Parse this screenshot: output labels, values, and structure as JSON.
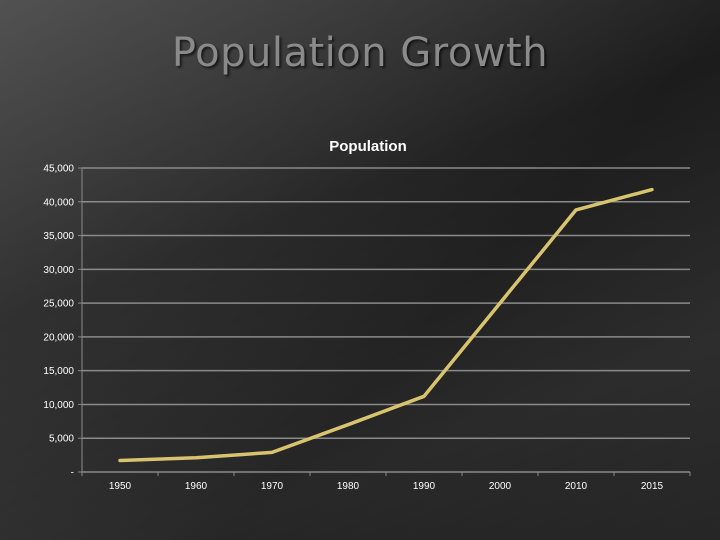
{
  "slide": {
    "title": "Population Growth"
  },
  "colors": {
    "line": "#d8c46e",
    "grid": "#8a8a8a",
    "text": "#ffffff",
    "title": "#8a8a8a"
  },
  "chart_data": {
    "type": "line",
    "title": "Population",
    "xlabel": "",
    "ylabel": "",
    "categories": [
      "1950",
      "1960",
      "1970",
      "1980",
      "1990",
      "2000",
      "2010",
      "2015"
    ],
    "series": [
      {
        "values": [
          1700,
          2100,
          2900,
          7000,
          11200,
          25000,
          38800,
          41800
        ]
      }
    ],
    "ylim": [
      0,
      45000
    ],
    "yticks": [
      0,
      5000,
      10000,
      15000,
      20000,
      25000,
      30000,
      35000,
      40000,
      45000
    ],
    "ytick_labels": [
      "-",
      "5,000",
      "10,000",
      "15,000",
      "20,000",
      "25,000",
      "30,000",
      "35,000",
      "40,000",
      "45,000"
    ],
    "grid": "horizontal",
    "legend": "none"
  }
}
